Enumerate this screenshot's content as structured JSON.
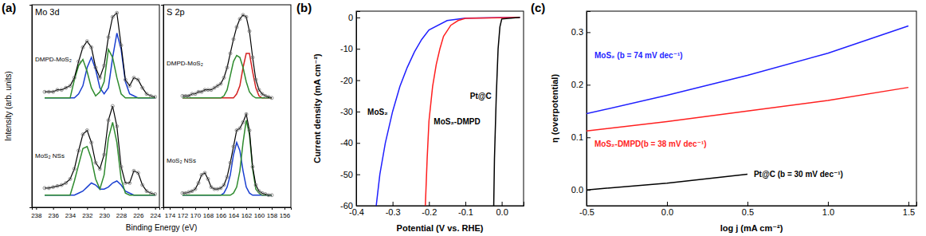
{
  "chart_data": [
    {
      "type": "line",
      "title": "(a)",
      "subtitle": "Mo 3d",
      "xlabel": "Binding Energy (eV)",
      "ylabel": "Intensity (arb. units)",
      "tick_labels": "x",
      "xlim": [
        238.5,
        223.5
      ],
      "ylim": [
        0,
        10
      ],
      "xticks": [
        238,
        236,
        234,
        232,
        230,
        228,
        226,
        224
      ],
      "x": [
        237,
        236.5,
        236,
        235.5,
        235,
        234.5,
        234,
        233.5,
        233,
        232.5,
        232,
        231.5,
        231,
        230.5,
        230,
        229.5,
        229,
        228.5,
        228,
        227.5,
        227,
        226.5,
        226,
        225.5,
        225,
        224.5,
        224
      ],
      "series": [
        {
          "color": "#1a3fd0",
          "values": [
            5.4,
            5.4,
            5.4,
            5.4,
            5.4,
            5.4,
            5.4,
            5.4,
            5.6,
            6.0,
            6.9,
            7.4,
            6.8,
            5.9,
            5.6,
            5.9,
            7.4,
            8.6,
            7.8,
            6.2,
            5.6,
            5.5,
            5.4,
            5.4,
            5.4,
            5.4,
            5.4
          ]
        },
        {
          "color": "#2e8b2e",
          "values": [
            5.4,
            5.4,
            5.4,
            5.4,
            5.4,
            5.4,
            5.4,
            6.3,
            7.0,
            7.3,
            6.7,
            5.9,
            5.5,
            5.7,
            6.2,
            7.8,
            7.4,
            6.4,
            5.6,
            5.4,
            5.4,
            5.4,
            5.4,
            5.4,
            5.4,
            5.4,
            5.4
          ]
        },
        {
          "name": "DMPD-MoS₂",
          "color": "#000000",
          "marker": "circle",
          "values": [
            5.7,
            5.7,
            5.7,
            5.8,
            5.8,
            5.9,
            6.0,
            6.4,
            7.2,
            7.9,
            8.2,
            7.9,
            6.9,
            6.4,
            7.0,
            8.4,
            9.4,
            9.6,
            8.0,
            6.3,
            6.0,
            6.4,
            6.3,
            5.9,
            5.6,
            5.5,
            5.45
          ]
        },
        {
          "color": "#1a3fd0",
          "values": [
            0.6,
            0.6,
            0.6,
            0.6,
            0.6,
            0.6,
            0.6,
            0.6,
            0.7,
            0.8,
            1.0,
            1.2,
            1.1,
            0.9,
            0.9,
            1.0,
            1.2,
            1.3,
            1.1,
            0.8,
            0.7,
            0.6,
            0.6,
            0.6,
            0.6,
            0.6,
            0.6
          ]
        },
        {
          "color": "#2e8b2e",
          "values": [
            0.6,
            0.6,
            0.6,
            0.6,
            0.6,
            0.6,
            0.6,
            1.3,
            2.1,
            2.9,
            3.0,
            2.4,
            1.4,
            0.9,
            1.6,
            3.4,
            4.2,
            3.2,
            1.4,
            0.7,
            0.6,
            0.6,
            0.6,
            0.6,
            0.6,
            0.6,
            0.6
          ]
        },
        {
          "name": "MoS₂ NSs",
          "color": "#000000",
          "marker": "circle",
          "values": [
            0.95,
            0.95,
            1.0,
            1.05,
            1.1,
            1.2,
            1.4,
            1.9,
            2.8,
            3.6,
            3.8,
            3.2,
            2.2,
            1.9,
            2.6,
            4.3,
            5.0,
            4.0,
            2.0,
            1.2,
            1.2,
            1.8,
            1.7,
            1.1,
            0.8,
            0.7,
            0.65
          ]
        }
      ]
    },
    {
      "type": "line",
      "subtitle": "S 2p",
      "tick_labels": "x",
      "xlim": [
        175,
        155
      ],
      "ylim": [
        0,
        10
      ],
      "xticks": [
        174,
        172,
        170,
        168,
        166,
        164,
        162,
        160,
        158,
        156
      ],
      "x": [
        172,
        171.5,
        171,
        170.5,
        170,
        169.5,
        169,
        168.5,
        168,
        167.5,
        167,
        166.5,
        166,
        165.5,
        165,
        164.5,
        164,
        163.5,
        163,
        162.5,
        162,
        161.5,
        161,
        160.5,
        160,
        159.5,
        159,
        158.5,
        158
      ],
      "series": [
        {
          "color": "#d42020",
          "values": [
            5.4,
            5.4,
            5.4,
            5.4,
            5.4,
            5.4,
            5.4,
            5.4,
            5.4,
            5.4,
            5.4,
            5.4,
            5.4,
            5.4,
            5.4,
            5.4,
            5.4,
            5.6,
            6.0,
            6.9,
            7.6,
            7.6,
            6.7,
            5.9,
            5.5,
            5.4,
            5.4,
            5.4,
            5.4
          ]
        },
        {
          "color": "#2e8b2e",
          "values": [
            5.4,
            5.4,
            5.4,
            5.4,
            5.4,
            5.4,
            5.4,
            5.4,
            5.4,
            5.4,
            5.4,
            5.4,
            5.4,
            5.5,
            5.8,
            6.5,
            7.2,
            7.5,
            7.4,
            6.9,
            6.2,
            5.7,
            5.5,
            5.4,
            5.4,
            5.4,
            5.4,
            5.4,
            5.4
          ]
        },
        {
          "name": "DMPD-MoS₂",
          "color": "#000000",
          "marker": "circle",
          "values": [
            5.5,
            5.5,
            5.5,
            5.6,
            5.6,
            5.7,
            5.7,
            5.8,
            5.8,
            5.8,
            5.9,
            6.0,
            6.1,
            6.4,
            6.9,
            7.6,
            8.3,
            8.9,
            9.3,
            9.5,
            9.4,
            8.7,
            7.4,
            6.3,
            5.8,
            5.6,
            5.5,
            5.45,
            5.4
          ]
        },
        {
          "color": "#1a3fd0",
          "values": [
            0.6,
            0.6,
            0.6,
            0.6,
            0.6,
            0.6,
            0.6,
            0.6,
            0.6,
            0.6,
            0.6,
            0.6,
            0.6,
            0.7,
            1.0,
            1.6,
            2.6,
            3.2,
            2.8,
            1.8,
            1.0,
            0.7,
            0.6,
            0.6,
            0.6,
            0.6,
            0.6,
            0.6,
            0.6
          ]
        },
        {
          "color": "#2e8b2e",
          "values": [
            0.6,
            0.6,
            0.6,
            0.6,
            0.6,
            0.6,
            0.6,
            0.6,
            0.6,
            0.6,
            0.6,
            0.6,
            0.6,
            0.6,
            0.6,
            0.6,
            0.7,
            1.0,
            1.8,
            3.2,
            4.3,
            3.6,
            1.9,
            0.9,
            0.7,
            0.6,
            0.6,
            0.6,
            0.6
          ]
        },
        {
          "name": "MoS₂ NSs",
          "color": "#000000",
          "marker": "circle",
          "values": [
            0.7,
            0.7,
            0.75,
            0.8,
            0.9,
            1.2,
            1.6,
            1.7,
            1.4,
            1.0,
            0.9,
            0.9,
            0.95,
            1.1,
            1.5,
            2.2,
            3.0,
            3.8,
            3.9,
            4.2,
            4.6,
            3.8,
            2.0,
            1.1,
            0.8,
            0.7,
            0.65,
            0.6,
            0.6
          ]
        }
      ]
    },
    {
      "type": "line",
      "title": "(b)",
      "xlabel": "Potential (V vs. RHE)",
      "ylabel": "Current density (mA cm⁻²)",
      "xlim": [
        -0.4,
        0.06
      ],
      "ylim": [
        -60,
        2
      ],
      "xticks": [
        -0.4,
        -0.3,
        -0.2,
        -0.1,
        {
          "value": 0,
          "label": "0.0"
        }
      ],
      "yticks": [
        0,
        -10,
        -20,
        -30,
        -40,
        -50,
        -60
      ],
      "series": [
        {
          "name": "MoS₂",
          "color": "#1f1fff",
          "x": [
            0.05,
            -0.1,
            -0.15,
            -0.2,
            -0.22,
            -0.24,
            -0.26,
            -0.28,
            -0.3,
            -0.32,
            -0.335,
            -0.345
          ],
          "values": [
            0,
            -0.2,
            -1,
            -4,
            -7,
            -11,
            -16,
            -22,
            -30,
            -40,
            -50,
            -60
          ]
        },
        {
          "name": "MoS₂-DMPD",
          "color": "#ff1f1f",
          "x": [
            0.05,
            -0.1,
            -0.12,
            -0.14,
            -0.16,
            -0.17,
            -0.18,
            -0.19,
            -0.2,
            -0.205,
            -0.21
          ],
          "values": [
            0,
            -0.3,
            -1,
            -2.5,
            -6,
            -10,
            -15,
            -22,
            -33,
            -45,
            -60
          ]
        },
        {
          "name": "Pt@C",
          "color": "#000000",
          "x": [
            0.05,
            0,
            -0.005,
            -0.01,
            -0.015,
            -0.02,
            -0.022
          ],
          "values": [
            0,
            -0.5,
            -3,
            -10,
            -25,
            -45,
            -60
          ]
        }
      ]
    },
    {
      "type": "line",
      "title": "(c)",
      "xlabel": "log j (mA cm⁻²)",
      "ylabel": "η (overpotential)",
      "xlim": [
        -0.5,
        1.55
      ],
      "ylim": [
        -0.03,
        0.34
      ],
      "xticks": [
        -0.5,
        {
          "value": 0,
          "label": "0.0"
        },
        0.5,
        {
          "value": 1,
          "label": "1.0"
        },
        1.5
      ],
      "yticks": [
        {
          "value": 0,
          "label": "0.0"
        },
        0.1,
        0.2,
        0.3
      ],
      "series": [
        {
          "name": "MoS₂ (b = 74 mV dec⁻¹)",
          "color": "#1f1fff",
          "x": [
            -0.5,
            0,
            0.5,
            1,
            1.5
          ],
          "values": [
            0.145,
            0.18,
            0.218,
            0.26,
            0.312
          ]
        },
        {
          "name": "MoS₂-DMPD(b = 38 mV dec⁻¹)",
          "color": "#ff1f1f",
          "x": [
            -0.5,
            0,
            0.5,
            1,
            1.5
          ],
          "values": [
            0.112,
            0.13,
            0.15,
            0.17,
            0.195
          ]
        },
        {
          "name": "Pt@C (b = 30 mV dec⁻¹)",
          "color": "#000000",
          "x": [
            -0.5,
            0,
            0.5
          ],
          "values": [
            0,
            0.013,
            0.03
          ]
        }
      ]
    }
  ]
}
